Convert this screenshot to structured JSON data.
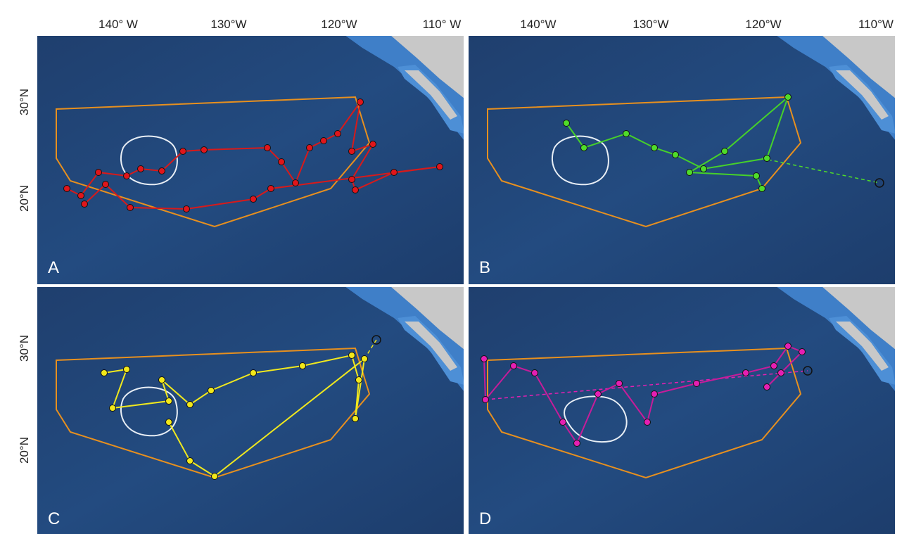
{
  "longitude_labels": [
    "140° W",
    "130°W",
    "120°W",
    "110° W",
    "140°W",
    "130°W",
    "120°W",
    "110°W"
  ],
  "latitude_labels": [
    "30°N",
    "20°N",
    "30°N",
    "20°N"
  ],
  "panels": [
    {
      "label": "A"
    },
    {
      "label": "B"
    },
    {
      "label": "C"
    },
    {
      "label": "D"
    }
  ]
}
